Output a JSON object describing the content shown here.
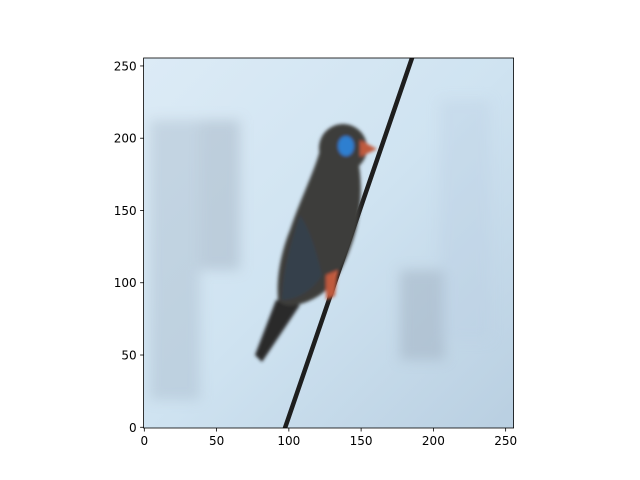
{
  "chart_data": {
    "type": "image",
    "description_visible": "",
    "xlim": [
      -0.5,
      255.5
    ],
    "ylim": [
      255.5,
      -0.5
    ],
    "x_ticks": [
      0,
      50,
      100,
      150,
      200,
      250
    ],
    "y_ticks": [
      0,
      50,
      100,
      150,
      200,
      250
    ],
    "x_tick_labels": [
      "0",
      "50",
      "100",
      "150",
      "200",
      "250"
    ],
    "y_tick_labels": [
      "0",
      "50",
      "100",
      "150",
      "200",
      "250"
    ],
    "title": "",
    "xlabel": "",
    "ylabel": "",
    "grid": false,
    "colors": {
      "sky": "#cfe3f1",
      "sky_light": "#dcebf6",
      "sky_dark": "#b9cfe1",
      "shadow": "#9fb0bf",
      "bird_body": "#3e3c3a",
      "bird_dark": "#2a2a2c",
      "wing": "#36404c",
      "eye_patch": "#2f7fd0",
      "beak": "#c05a3c",
      "wire": "#1e1e1e",
      "axis": "#000000"
    }
  }
}
